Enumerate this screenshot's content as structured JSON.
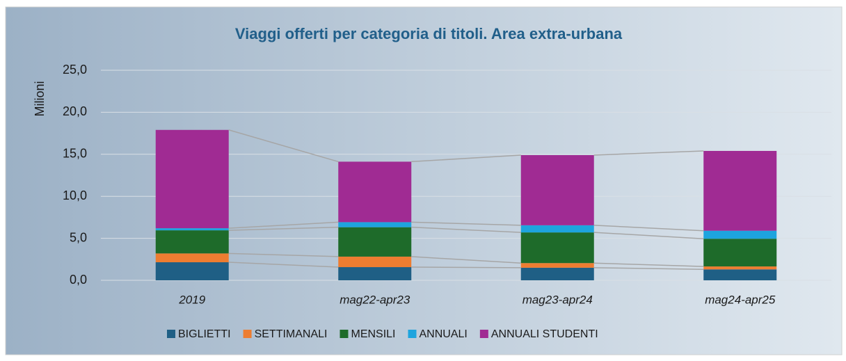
{
  "chart_data": {
    "type": "stacked_bar",
    "title": "Viaggi offerti per categoria di titoli. Area extra-urbana",
    "y_label": "Milioni",
    "categories": [
      "2019",
      "mag22-apr23",
      "mag23-apr24",
      "mag24-apr25"
    ],
    "series": [
      {
        "name": "BIGLIETTI",
        "color": "#1f5f85",
        "values": [
          2.15,
          1.57,
          1.5,
          1.3
        ]
      },
      {
        "name": "SETTIMANALI",
        "color": "#ed7d31",
        "values": [
          1.05,
          1.25,
          0.55,
          0.35
        ]
      },
      {
        "name": "MENSILI",
        "color": "#1e6b2a",
        "values": [
          2.75,
          3.5,
          3.65,
          3.3
        ]
      },
      {
        "name": "ANNUALI",
        "color": "#1ea4de",
        "values": [
          0.25,
          0.6,
          0.85,
          0.95
        ]
      },
      {
        "name": "ANNUALI STUDENTI",
        "color": "#a02b93",
        "values": [
          11.7,
          7.2,
          8.35,
          9.5
        ]
      }
    ],
    "ylim": [
      0,
      25
    ],
    "yticks": [
      {
        "value": 0,
        "label": "0,0"
      },
      {
        "value": 5,
        "label": "5,0"
      },
      {
        "value": 10,
        "label": "10,0"
      },
      {
        "value": 15,
        "label": "15,0"
      },
      {
        "value": 20,
        "label": "20,0"
      },
      {
        "value": 25,
        "label": "25,0"
      }
    ],
    "grid": true,
    "series_lines": true,
    "legend": "bottom"
  }
}
